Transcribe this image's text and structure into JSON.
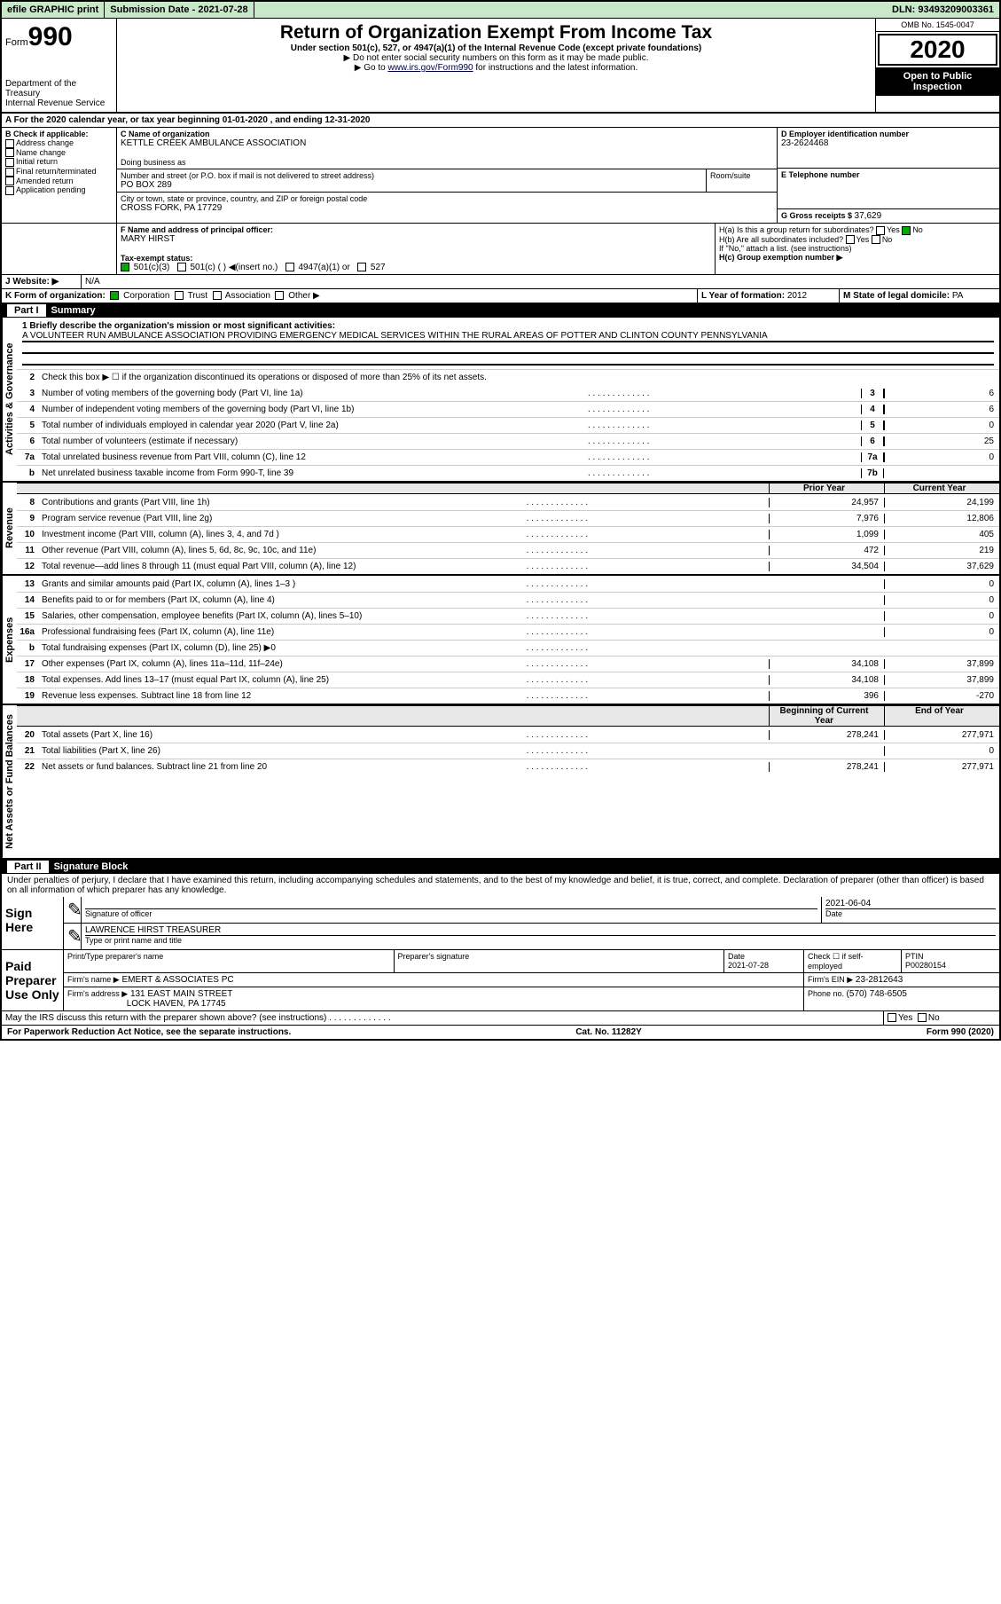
{
  "topbar": {
    "efile": "efile GRAPHIC print",
    "sub_label": "Submission Date - ",
    "sub_date": "2021-07-28",
    "dln_label": "DLN: ",
    "dln": "93493209003361"
  },
  "header": {
    "form_small": "Form",
    "form_big": "990",
    "dept": "Department of the Treasury",
    "irs": "Internal Revenue Service",
    "title": "Return of Organization Exempt From Income Tax",
    "sub1": "Under section 501(c), 527, or 4947(a)(1) of the Internal Revenue Code (except private foundations)",
    "sub2": "▶ Do not enter social security numbers on this form as it may be made public.",
    "sub3a": "▶ Go to ",
    "sub3_link": "www.irs.gov/Form990",
    "sub3b": " for instructions and the latest information.",
    "omb": "OMB No. 1545-0047",
    "year": "2020",
    "ptoi": "Open to Public Inspection"
  },
  "period": {
    "text": "For the 2020 calendar year, or tax year beginning 01-01-2020   , and ending 12-31-2020"
  },
  "boxB": {
    "label": "B Check if applicable:",
    "items": [
      "Address change",
      "Name change",
      "Initial return",
      "Final return/terminated",
      "Amended return",
      "Application pending"
    ]
  },
  "boxC": {
    "name_label": "C Name of organization",
    "name": "KETTLE CREEK AMBULANCE ASSOCIATION",
    "dba_label": "Doing business as",
    "addr_label": "Number and street (or P.O. box if mail is not delivered to street address)",
    "room_label": "Room/suite",
    "addr": "PO BOX 289",
    "city_label": "City or town, state or province, country, and ZIP or foreign postal code",
    "city": "CROSS FORK, PA  17729"
  },
  "boxD": {
    "label": "D Employer identification number",
    "val": "23-2624468"
  },
  "boxE": {
    "label": "E Telephone number",
    "val": ""
  },
  "boxG": {
    "label": "G Gross receipts $ ",
    "val": "37,629"
  },
  "boxF": {
    "label": "F  Name and address of principal officer:",
    "val": "MARY HIRST"
  },
  "boxH": {
    "a": "H(a)  Is this a group return for subordinates?",
    "b": "H(b)  Are all subordinates included?",
    "b_note": "If \"No,\" attach a list. (see instructions)",
    "c": "H(c)  Group exemption number ▶",
    "yes": "Yes",
    "no": "No"
  },
  "boxI": {
    "label": "Tax-exempt status:",
    "opts": [
      "501(c)(3)",
      "501(c) (  ) ◀(insert no.)",
      "4947(a)(1) or",
      "527"
    ]
  },
  "boxJ": {
    "label": "Website: ▶",
    "val": "N/A"
  },
  "boxK": {
    "label": "K Form of organization:",
    "opts": [
      "Corporation",
      "Trust",
      "Association",
      "Other ▶"
    ]
  },
  "boxL": {
    "label": "L Year of formation: ",
    "val": "2012"
  },
  "boxM": {
    "label": "M State of legal domicile: ",
    "val": "PA"
  },
  "parts": {
    "p1": {
      "no": "Part I",
      "title": "Summary"
    },
    "p2": {
      "no": "Part II",
      "title": "Signature Block"
    }
  },
  "summary": {
    "mission_label": "1  Briefly describe the organization's mission or most significant activities:",
    "mission": "A VOLUNTEER RUN AMBULANCE ASSOCIATION PROVIDING EMERGENCY MEDICAL SERVICES WITHIN THE RURAL AREAS OF POTTER AND CLINTON COUNTY PENNSYLVANIA",
    "line2": "Check this box ▶ ☐  if the organization discontinued its operations or disposed of more than 25% of its net assets.",
    "side_activities": "Activities & Governance",
    "side_revenue": "Revenue",
    "side_expenses": "Expenses",
    "side_netassets": "Net Assets or Fund Balances",
    "yr_prior": "Prior Year",
    "yr_curr": "Current Year",
    "bcy": "Beginning of Current Year",
    "eoy": "End of Year",
    "gov_rows": [
      {
        "n": "3",
        "d": "Number of voting members of the governing body (Part VI, line 1a)",
        "box": "3",
        "v": "6"
      },
      {
        "n": "4",
        "d": "Number of independent voting members of the governing body (Part VI, line 1b)",
        "box": "4",
        "v": "6"
      },
      {
        "n": "5",
        "d": "Total number of individuals employed in calendar year 2020 (Part V, line 2a)",
        "box": "5",
        "v": "0"
      },
      {
        "n": "6",
        "d": "Total number of volunteers (estimate if necessary)",
        "box": "6",
        "v": "25"
      },
      {
        "n": "7a",
        "d": "Total unrelated business revenue from Part VIII, column (C), line 12",
        "box": "7a",
        "v": "0"
      },
      {
        "n": "b",
        "d": "Net unrelated business taxable income from Form 990-T, line 39",
        "box": "7b",
        "v": ""
      }
    ],
    "rev_rows": [
      {
        "n": "8",
        "d": "Contributions and grants (Part VIII, line 1h)",
        "p": "24,957",
        "c": "24,199"
      },
      {
        "n": "9",
        "d": "Program service revenue (Part VIII, line 2g)",
        "p": "7,976",
        "c": "12,806"
      },
      {
        "n": "10",
        "d": "Investment income (Part VIII, column (A), lines 3, 4, and 7d )",
        "p": "1,099",
        "c": "405"
      },
      {
        "n": "11",
        "d": "Other revenue (Part VIII, column (A), lines 5, 6d, 8c, 9c, 10c, and 11e)",
        "p": "472",
        "c": "219"
      },
      {
        "n": "12",
        "d": "Total revenue—add lines 8 through 11 (must equal Part VIII, column (A), line 12)",
        "p": "34,504",
        "c": "37,629"
      }
    ],
    "exp_rows": [
      {
        "n": "13",
        "d": "Grants and similar amounts paid (Part IX, column (A), lines 1–3 )",
        "p": "",
        "c": "0"
      },
      {
        "n": "14",
        "d": "Benefits paid to or for members (Part IX, column (A), line 4)",
        "p": "",
        "c": "0"
      },
      {
        "n": "15",
        "d": "Salaries, other compensation, employee benefits (Part IX, column (A), lines 5–10)",
        "p": "",
        "c": "0"
      },
      {
        "n": "16a",
        "d": "Professional fundraising fees (Part IX, column (A), line 11e)",
        "p": "",
        "c": "0"
      },
      {
        "n": "b",
        "d": "Total fundraising expenses (Part IX, column (D), line 25) ▶0",
        "p": "grey",
        "c": "grey"
      },
      {
        "n": "17",
        "d": "Other expenses (Part IX, column (A), lines 11a–11d, 11f–24e)",
        "p": "34,108",
        "c": "37,899"
      },
      {
        "n": "18",
        "d": "Total expenses. Add lines 13–17 (must equal Part IX, column (A), line 25)",
        "p": "34,108",
        "c": "37,899"
      },
      {
        "n": "19",
        "d": "Revenue less expenses. Subtract line 18 from line 12",
        "p": "396",
        "c": "-270"
      }
    ],
    "na_rows": [
      {
        "n": "20",
        "d": "Total assets (Part X, line 16)",
        "p": "278,241",
        "c": "277,971"
      },
      {
        "n": "21",
        "d": "Total liabilities (Part X, line 26)",
        "p": "",
        "c": "0"
      },
      {
        "n": "22",
        "d": "Net assets or fund balances. Subtract line 21 from line 20",
        "p": "278,241",
        "c": "277,971"
      }
    ]
  },
  "sig": {
    "perjury": "Under penalties of perjury, I declare that I have examined this return, including accompanying schedules and statements, and to the best of my knowledge and belief, it is true, correct, and complete. Declaration of preparer (other than officer) is based on all information of which preparer has any knowledge.",
    "sign_here": "Sign Here",
    "sig_officer": "Signature of officer",
    "date_label": "Date",
    "date": "2021-06-04",
    "name_title": "LAWRENCE HIRST  TREASURER",
    "type_label": "Type or print name and title",
    "paid": "Paid Preparer Use Only",
    "prep_name_label": "Print/Type preparer's name",
    "prep_sig_label": "Preparer's signature",
    "prep_date": "2021-07-28",
    "check_se": "Check ☐ if self-employed",
    "ptin_label": "PTIN",
    "ptin": "P00280154",
    "firm_name_label": "Firm's name    ▶",
    "firm_name": "EMERT & ASSOCIATES PC",
    "firm_ein_label": "Firm's EIN ▶",
    "firm_ein": "23-2812643",
    "firm_addr_label": "Firm's address ▶",
    "firm_addr1": "131 EAST MAIN STREET",
    "firm_addr2": "LOCK HAVEN, PA  17745",
    "phone_label": "Phone no. ",
    "phone": "(570) 748-6505",
    "discuss": "May the IRS discuss this return with the preparer shown above? (see instructions)"
  },
  "footer": {
    "left": "For Paperwork Reduction Act Notice, see the separate instructions.",
    "mid": "Cat. No. 11282Y",
    "right": "Form 990 (2020)"
  },
  "dots": ".   .   .   .   .   .   .   .   .   .   .   .   ."
}
